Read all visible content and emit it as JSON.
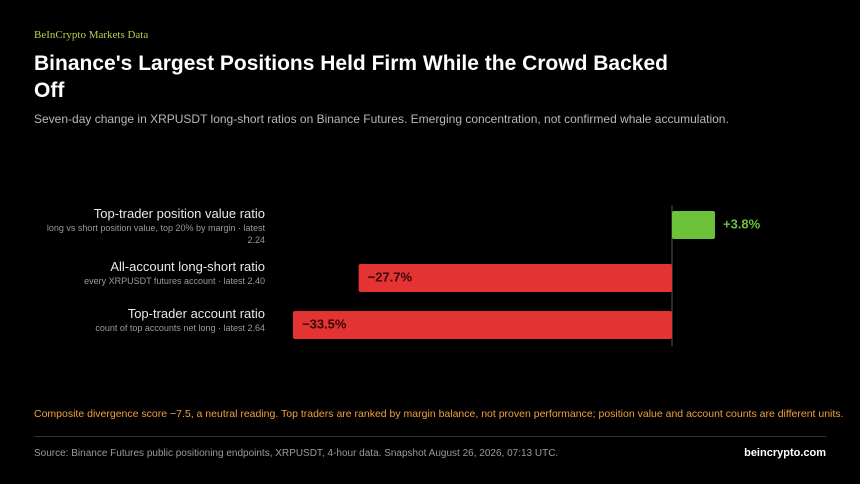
{
  "brand": "BeInCrypto Markets Data",
  "chart_data": {
    "type": "bar",
    "orientation": "horizontal",
    "title": "Binance's Largest Positions Held Firm While the Crowd Backed Off",
    "subtitle": "Seven-day change in XRPUSDT long-short ratios on Binance Futures. Emerging concentration, not confirmed whale accumulation.",
    "categories": [
      "Top-trader position value ratio",
      "All-account long-short ratio",
      "Top-trader account ratio"
    ],
    "descriptions": [
      "long vs short position value, top 20% by margin · latest 2.24",
      "every XRPUSDT futures account · latest 2.40",
      "count of top accounts net long · latest 2.64"
    ],
    "values": [
      3.8,
      -27.7,
      -33.5
    ],
    "value_labels": [
      "+3.8%",
      "−27.7%",
      "−33.5%"
    ],
    "colors": {
      "positive": "#6cc33a",
      "negative": "#e33333"
    }
  },
  "footnote": "Composite divergence score −7.5, a neutral reading. Top traders are ranked by margin balance, not proven performance; position value and account counts are different units.",
  "source": "Source: Binance Futures public positioning endpoints, XRPUSDT, 4-hour data. Snapshot August 26, 2026, 07:13 UTC.",
  "site": "beincrypto.com"
}
